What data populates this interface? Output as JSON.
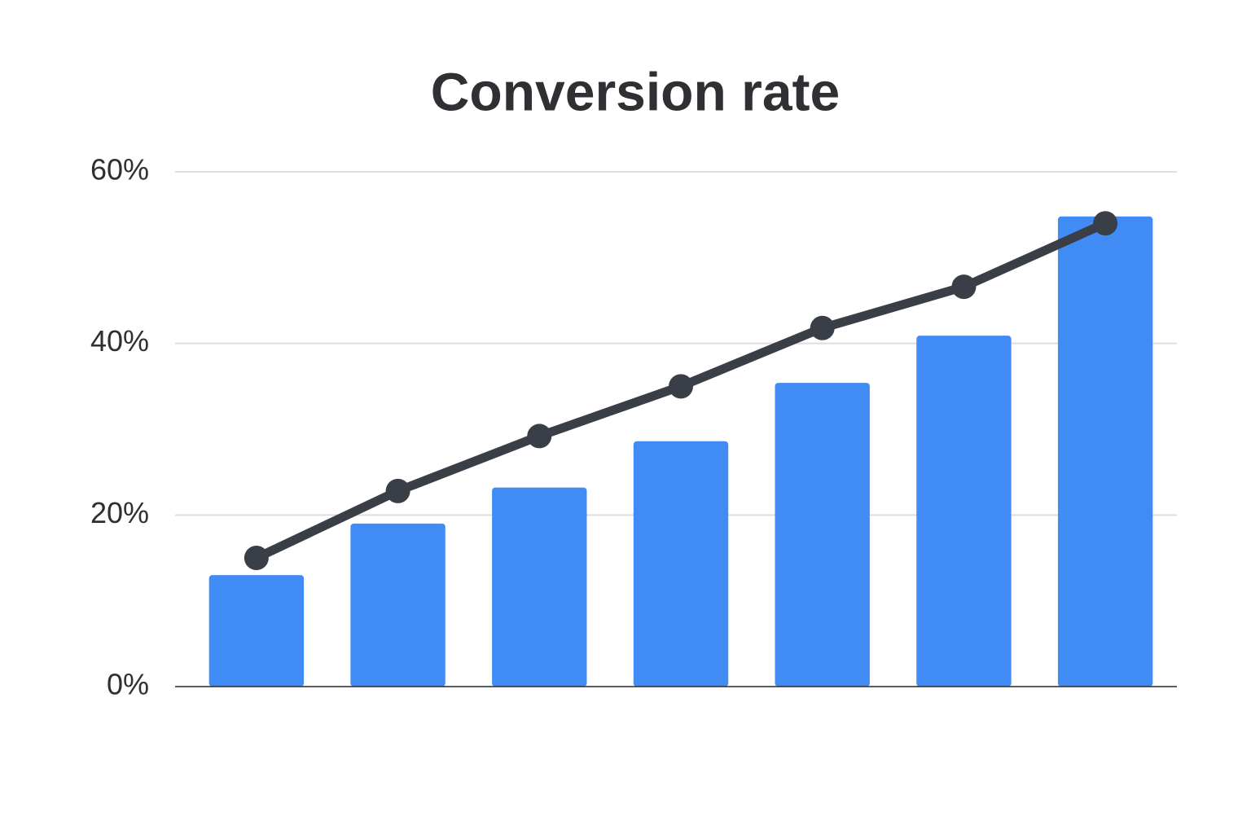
{
  "chart_data": {
    "type": "bar",
    "title": "Conversion rate",
    "categories": [
      null,
      null,
      null,
      null,
      null,
      null,
      null
    ],
    "series": [
      {
        "type": "bar",
        "color": "#418bf4",
        "values": [
          13,
          19,
          23.2,
          28.6,
          35.4,
          40.9,
          54.8
        ]
      },
      {
        "type": "line",
        "color": "#3a3f47",
        "values": [
          15,
          22.8,
          29.2,
          35,
          41.8,
          46.6,
          54
        ]
      }
    ],
    "ylim": [
      0,
      60
    ],
    "yticks": [
      {
        "value": 0,
        "label": "0%"
      },
      {
        "value": 20,
        "label": "20%"
      },
      {
        "value": 40,
        "label": "40%"
      },
      {
        "value": 60,
        "label": "60%"
      }
    ],
    "grid": true
  }
}
